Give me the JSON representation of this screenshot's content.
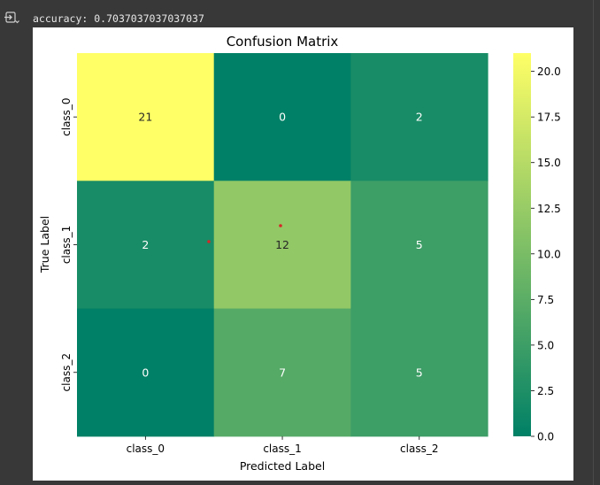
{
  "output": {
    "prefix": "accuracy: ",
    "value": "0.7037037037037037"
  },
  "chart_data": {
    "type": "heatmap",
    "title": "Confusion Matrix",
    "xlabel": "Predicted Label",
    "ylabel": "True Label",
    "x_categories": [
      "class_0",
      "class_1",
      "class_2"
    ],
    "y_categories": [
      "class_0",
      "class_1",
      "class_2"
    ],
    "values": [
      [
        21,
        0,
        2
      ],
      [
        2,
        12,
        5
      ],
      [
        0,
        7,
        5
      ]
    ],
    "annotations": [
      [
        "21",
        "0",
        "2"
      ],
      [
        "2",
        "12",
        "5"
      ],
      [
        "0",
        "7",
        "5"
      ]
    ],
    "colormap": "summer",
    "vmin": 0,
    "vmax": 21,
    "colorbar_ticks": [
      "0.0",
      "2.5",
      "5.0",
      "7.5",
      "10.0",
      "12.5",
      "15.0",
      "17.5",
      "20.0"
    ],
    "colorbar_tick_values": [
      0,
      2.5,
      5,
      7.5,
      10,
      12.5,
      15,
      17.5,
      20
    ],
    "annotation_colors": {
      "light": "#ffffff",
      "dark": "#262626"
    }
  },
  "colors": {
    "marker": "#d62728"
  }
}
